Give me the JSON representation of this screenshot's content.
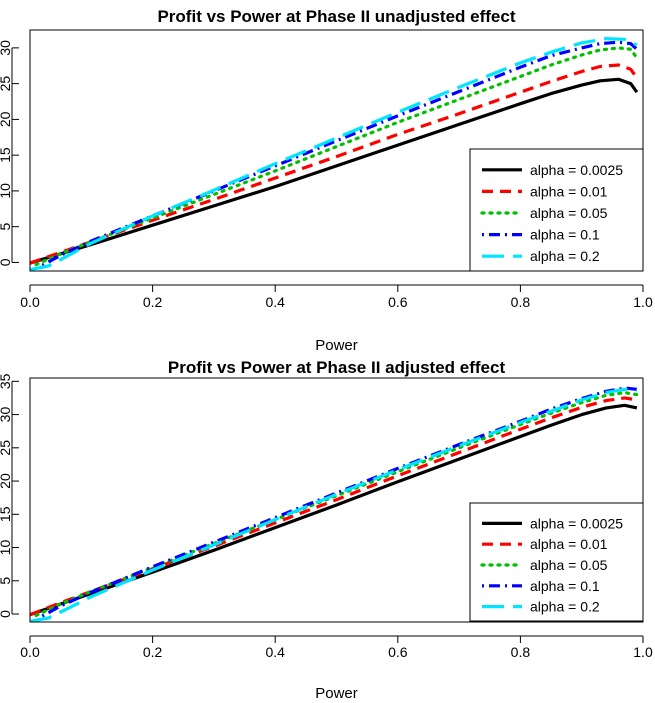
{
  "chart_data": [
    {
      "type": "line",
      "title": "Profit vs Power at Phase II unadjusted effect",
      "xlabel": "Power",
      "ylabel": "",
      "xlim": [
        0,
        1
      ],
      "ylim": [
        -1.2,
        32.5
      ],
      "xticks": [
        0.0,
        0.2,
        0.4,
        0.6,
        0.8,
        1.0
      ],
      "xtick_labels": [
        "0.0",
        "0.2",
        "0.4",
        "0.6",
        "0.8",
        "1.0"
      ],
      "yticks": [
        0,
        5,
        10,
        15,
        20,
        25,
        30
      ],
      "ytick_labels": [
        "0",
        "5",
        "10",
        "15",
        "20",
        "25",
        "30"
      ],
      "legend_position": "bottom-right",
      "series": [
        {
          "name": "alpha = 0.0025",
          "color": "#000000",
          "dash": "solid",
          "x": [
            0.0,
            0.05,
            0.1,
            0.2,
            0.3,
            0.4,
            0.5,
            0.6,
            0.7,
            0.8,
            0.85,
            0.9,
            0.93,
            0.96,
            0.98,
            0.99
          ],
          "y": [
            -0.1,
            1.2,
            2.5,
            5.2,
            7.9,
            10.6,
            13.5,
            16.4,
            19.3,
            22.2,
            23.6,
            24.8,
            25.4,
            25.6,
            25.0,
            23.8
          ]
        },
        {
          "name": "alpha = 0.01",
          "color": "#ff0000",
          "dash": "dashed",
          "x": [
            0.0,
            0.05,
            0.1,
            0.2,
            0.3,
            0.4,
            0.5,
            0.6,
            0.7,
            0.8,
            0.85,
            0.9,
            0.93,
            0.96,
            0.98,
            0.99
          ],
          "y": [
            -0.1,
            1.4,
            2.9,
            5.9,
            8.8,
            11.8,
            14.8,
            17.9,
            20.8,
            23.8,
            25.3,
            26.7,
            27.4,
            27.6,
            27.0,
            25.8
          ]
        },
        {
          "name": "alpha = 0.05",
          "color": "#00c000",
          "dash": "dotted",
          "x": [
            0.01,
            0.05,
            0.1,
            0.2,
            0.3,
            0.4,
            0.5,
            0.6,
            0.7,
            0.8,
            0.85,
            0.9,
            0.93,
            0.96,
            0.98,
            0.99
          ],
          "y": [
            -0.3,
            1.2,
            2.9,
            6.2,
            9.5,
            12.8,
            16.2,
            19.6,
            22.8,
            26.0,
            27.6,
            29.0,
            29.7,
            30.0,
            29.8,
            28.6
          ]
        },
        {
          "name": "alpha = 0.1",
          "color": "#0000ff",
          "dash": "dotdash",
          "x": [
            0.02,
            0.05,
            0.1,
            0.2,
            0.3,
            0.4,
            0.5,
            0.6,
            0.7,
            0.8,
            0.85,
            0.9,
            0.93,
            0.96,
            0.98,
            0.99
          ],
          "y": [
            -0.4,
            1.0,
            3.0,
            6.5,
            10.0,
            13.5,
            17.0,
            20.5,
            23.9,
            27.3,
            28.9,
            30.0,
            30.6,
            30.8,
            30.6,
            29.8
          ]
        },
        {
          "name": "alpha = 0.2",
          "color": "#00e5ff",
          "dash": "longdash",
          "x": [
            0.0,
            0.03,
            0.05,
            0.1,
            0.2,
            0.3,
            0.4,
            0.5,
            0.6,
            0.7,
            0.8,
            0.85,
            0.9,
            0.94,
            0.97,
            0.99
          ],
          "y": [
            -1.0,
            -0.5,
            0.4,
            2.7,
            6.5,
            10.1,
            13.8,
            17.4,
            21.0,
            24.5,
            27.9,
            29.4,
            30.7,
            31.3,
            31.2,
            30.4
          ]
        }
      ]
    },
    {
      "type": "line",
      "title": "Profit vs Power at Phase II adjusted effect",
      "xlabel": "Power",
      "ylabel": "",
      "xlim": [
        0,
        1
      ],
      "ylim": [
        -1.2,
        35.5
      ],
      "xticks": [
        0.0,
        0.2,
        0.4,
        0.6,
        0.8,
        1.0
      ],
      "xtick_labels": [
        "0.0",
        "0.2",
        "0.4",
        "0.6",
        "0.8",
        "1.0"
      ],
      "yticks": [
        0,
        5,
        10,
        15,
        20,
        25,
        30,
        35
      ],
      "ytick_labels": [
        "0",
        "5",
        "10",
        "15",
        "20",
        "25",
        "30",
        "35"
      ],
      "legend_position": "bottom-right",
      "series": [
        {
          "name": "alpha = 0.0025",
          "color": "#000000",
          "dash": "solid",
          "x": [
            0.0,
            0.05,
            0.1,
            0.2,
            0.3,
            0.4,
            0.5,
            0.6,
            0.7,
            0.8,
            0.85,
            0.9,
            0.94,
            0.97,
            0.99
          ],
          "y": [
            -0.1,
            1.5,
            3.1,
            6.3,
            9.6,
            13.0,
            16.4,
            19.9,
            23.3,
            26.7,
            28.4,
            30.0,
            31.0,
            31.4,
            31.0
          ]
        },
        {
          "name": "alpha = 0.01",
          "color": "#ff0000",
          "dash": "dashed",
          "x": [
            0.0,
            0.05,
            0.1,
            0.2,
            0.3,
            0.4,
            0.5,
            0.6,
            0.7,
            0.8,
            0.85,
            0.9,
            0.94,
            0.97,
            0.99
          ],
          "y": [
            -0.1,
            1.7,
            3.4,
            6.8,
            10.2,
            13.7,
            17.2,
            20.8,
            24.3,
            27.8,
            29.5,
            31.1,
            32.1,
            32.5,
            32.2
          ]
        },
        {
          "name": "alpha = 0.05",
          "color": "#00c000",
          "dash": "dotted",
          "x": [
            0.01,
            0.05,
            0.1,
            0.2,
            0.3,
            0.4,
            0.5,
            0.6,
            0.7,
            0.8,
            0.85,
            0.9,
            0.94,
            0.97,
            0.99
          ],
          "y": [
            -0.2,
            1.5,
            3.4,
            7.0,
            10.6,
            14.2,
            17.8,
            21.4,
            25.0,
            28.5,
            30.2,
            31.8,
            32.9,
            33.3,
            33.0
          ]
        },
        {
          "name": "alpha = 0.1",
          "color": "#0000ff",
          "dash": "dotdash",
          "x": [
            0.02,
            0.05,
            0.1,
            0.2,
            0.3,
            0.4,
            0.5,
            0.6,
            0.7,
            0.8,
            0.85,
            0.9,
            0.94,
            0.97,
            0.99
          ],
          "y": [
            -0.3,
            1.2,
            3.3,
            7.1,
            10.8,
            14.5,
            18.2,
            21.9,
            25.5,
            29.0,
            30.8,
            32.4,
            33.5,
            34.0,
            33.8
          ]
        },
        {
          "name": "alpha = 0.2",
          "color": "#00e5ff",
          "dash": "longdash",
          "x": [
            0.0,
            0.03,
            0.05,
            0.1,
            0.2,
            0.3,
            0.4,
            0.5,
            0.6,
            0.7,
            0.8,
            0.85,
            0.9,
            0.94,
            0.97,
            0.99
          ],
          "y": [
            -1.1,
            -0.6,
            0.3,
            2.6,
            6.6,
            10.4,
            14.2,
            18.0,
            21.7,
            25.3,
            28.8,
            30.5,
            32.2,
            33.3,
            33.8,
            33.6
          ]
        }
      ]
    }
  ]
}
